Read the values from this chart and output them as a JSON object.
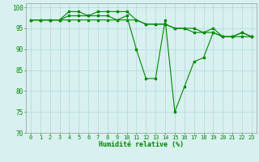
{
  "x": [
    0,
    1,
    2,
    3,
    4,
    5,
    6,
    7,
    8,
    9,
    10,
    11,
    12,
    13,
    14,
    15,
    16,
    17,
    18,
    19,
    20,
    21,
    22,
    23
  ],
  "line1": [
    97,
    97,
    97,
    97,
    97,
    97,
    97,
    97,
    97,
    97,
    98,
    90,
    83,
    83,
    97,
    75,
    81,
    87,
    88,
    94,
    93,
    93,
    94,
    93
  ],
  "line2": [
    97,
    97,
    97,
    97,
    98,
    98,
    98,
    99,
    99,
    99,
    99,
    97,
    96,
    96,
    96,
    95,
    95,
    95,
    94,
    94,
    93,
    93,
    94,
    93
  ],
  "line3": [
    97,
    97,
    97,
    97,
    99,
    99,
    98,
    98,
    98,
    97,
    97,
    97,
    96,
    96,
    96,
    95,
    95,
    94,
    94,
    95,
    93,
    93,
    93,
    93
  ],
  "line_color": "#008800",
  "bg_color": "#d8f0f0",
  "grid_color": "#b0d8d8",
  "axis_color": "#008800",
  "xlabel": "Humidité relative (%)",
  "ylim": [
    70,
    101
  ],
  "xlim": [
    -0.5,
    23.5
  ],
  "yticks": [
    70,
    75,
    80,
    85,
    90,
    95,
    100
  ],
  "xticks": [
    0,
    1,
    2,
    3,
    4,
    5,
    6,
    7,
    8,
    9,
    10,
    11,
    12,
    13,
    14,
    15,
    16,
    17,
    18,
    19,
    20,
    21,
    22,
    23
  ],
  "xtick_labels": [
    "0",
    "1",
    "2",
    "3",
    "4",
    "5",
    "6",
    "7",
    "8",
    "9",
    "10",
    "11",
    "12",
    "13",
    "14",
    "15",
    "16",
    "17",
    "18",
    "19",
    "20",
    "21",
    "22",
    "23"
  ]
}
